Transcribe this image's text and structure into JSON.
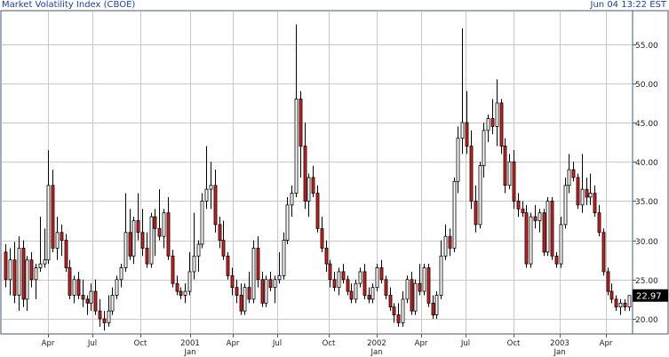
{
  "header": {
    "title": "Market Volatility Index (CBOE)",
    "timestamp": "Jun 04 13:22 EST"
  },
  "colors": {
    "up": "#ffffff",
    "down": "#d81e1e",
    "wick": "#000000",
    "grid": "#c8c8c8",
    "frame": "#4a5670",
    "header_text": "#1a3fae",
    "last_badge_bg": "#000000",
    "last_badge_text": "#ffffff"
  },
  "chart_data": {
    "type": "candlestick",
    "title": "Market Volatility Index (CBOE)",
    "period": "weekly",
    "x": {
      "tick_labels": [
        "Apr",
        "Jul",
        "Oct",
        "2001",
        "Jan",
        "Apr",
        "Jul",
        "Oct",
        "2002",
        "Jan",
        "Apr",
        "Jul",
        "Oct",
        "2003",
        "Jan",
        "Apr"
      ]
    },
    "y": {
      "ticks": [
        20,
        25,
        30,
        35,
        40,
        45,
        50,
        55
      ],
      "tick_labels": [
        "20.00",
        "25.00",
        "30.00",
        "35.00",
        "40.00",
        "45.00",
        "50.00",
        "55.00"
      ],
      "range": [
        16.0,
        58.0
      ],
      "side": "right"
    },
    "grid": true,
    "last_value": "22.97",
    "candles": [
      [
        28.5,
        29.5,
        24.0,
        25.0
      ],
      [
        25.0,
        29.0,
        23.0,
        27.5
      ],
      [
        27.5,
        29.8,
        22.0,
        23.0
      ],
      [
        23.0,
        30.5,
        21.0,
        29.0
      ],
      [
        29.0,
        30.0,
        21.5,
        22.5
      ],
      [
        22.5,
        28.0,
        21.0,
        27.5
      ],
      [
        27.5,
        28.5,
        24.0,
        25.0
      ],
      [
        25.0,
        27.0,
        22.5,
        26.5
      ],
      [
        26.5,
        33.0,
        26.0,
        27.0
      ],
      [
        27.0,
        31.5,
        26.5,
        27.5
      ],
      [
        27.5,
        41.5,
        27.0,
        37.0
      ],
      [
        37.0,
        39.0,
        28.5,
        29.0
      ],
      [
        29.0,
        33.0,
        27.5,
        31.0
      ],
      [
        31.0,
        32.0,
        28.0,
        30.0
      ],
      [
        30.0,
        30.8,
        26.0,
        26.5
      ],
      [
        26.5,
        27.5,
        22.5,
        23.0
      ],
      [
        23.0,
        25.5,
        22.0,
        25.0
      ],
      [
        25.0,
        26.0,
        22.5,
        23.0
      ],
      [
        23.0,
        25.0,
        21.5,
        22.5
      ],
      [
        22.5,
        23.0,
        20.5,
        22.0
      ],
      [
        22.0,
        24.5,
        21.0,
        23.5
      ],
      [
        23.5,
        25.0,
        20.5,
        21.0
      ],
      [
        21.0,
        22.5,
        19.0,
        20.0
      ],
      [
        20.0,
        21.0,
        18.5,
        19.5
      ],
      [
        19.5,
        23.0,
        19.0,
        21.0
      ],
      [
        21.0,
        24.0,
        20.5,
        23.0
      ],
      [
        23.0,
        25.5,
        22.5,
        25.0
      ],
      [
        25.0,
        27.0,
        24.0,
        26.5
      ],
      [
        26.5,
        36.0,
        26.0,
        31.0
      ],
      [
        31.0,
        34.0,
        27.5,
        28.0
      ],
      [
        28.0,
        33.0,
        27.0,
        32.5
      ],
      [
        32.5,
        36.0,
        30.0,
        31.0
      ],
      [
        31.0,
        34.0,
        28.0,
        29.0
      ],
      [
        29.0,
        31.0,
        26.5,
        27.0
      ],
      [
        27.0,
        33.5,
        26.5,
        33.0
      ],
      [
        33.0,
        34.0,
        28.0,
        31.5
      ],
      [
        31.5,
        36.5,
        30.0,
        30.5
      ],
      [
        30.5,
        34.0,
        29.0,
        33.5
      ],
      [
        33.5,
        35.5,
        27.5,
        28.0
      ],
      [
        28.0,
        28.8,
        24.0,
        24.5
      ],
      [
        24.5,
        25.5,
        23.0,
        23.5
      ],
      [
        23.5,
        24.0,
        22.5,
        23.0
      ],
      [
        23.0,
        24.5,
        22.0,
        23.5
      ],
      [
        23.5,
        28.5,
        23.0,
        26.0
      ],
      [
        26.0,
        33.5,
        25.0,
        28.0
      ],
      [
        28.0,
        30.0,
        26.0,
        29.5
      ],
      [
        29.5,
        36.0,
        29.0,
        35.0
      ],
      [
        35.0,
        42.0,
        34.0,
        36.5
      ],
      [
        36.5,
        40.0,
        34.0,
        37.0
      ],
      [
        37.0,
        39.0,
        31.0,
        32.0
      ],
      [
        32.0,
        33.0,
        29.0,
        30.0
      ],
      [
        30.0,
        32.5,
        27.5,
        28.0
      ],
      [
        28.0,
        28.5,
        25.0,
        25.5
      ],
      [
        25.5,
        26.5,
        23.0,
        24.0
      ],
      [
        24.0,
        25.0,
        22.0,
        23.0
      ],
      [
        23.0,
        24.5,
        20.5,
        21.0
      ],
      [
        21.0,
        24.5,
        20.5,
        24.0
      ],
      [
        24.0,
        26.0,
        22.0,
        22.5
      ],
      [
        22.5,
        30.0,
        22.0,
        29.0
      ],
      [
        29.0,
        30.5,
        24.0,
        25.0
      ],
      [
        25.0,
        26.0,
        21.5,
        22.0
      ],
      [
        22.0,
        25.5,
        21.5,
        25.0
      ],
      [
        25.0,
        26.0,
        23.5,
        24.0
      ],
      [
        24.0,
        25.5,
        22.0,
        25.0
      ],
      [
        25.0,
        28.5,
        24.5,
        25.5
      ],
      [
        25.5,
        31.0,
        25.0,
        30.0
      ],
      [
        30.0,
        35.5,
        29.5,
        34.5
      ],
      [
        34.5,
        37.0,
        33.0,
        36.0
      ],
      [
        36.0,
        57.5,
        35.5,
        48.0
      ],
      [
        48.0,
        49.0,
        38.0,
        42.0
      ],
      [
        42.0,
        45.0,
        34.0,
        35.0
      ],
      [
        35.0,
        38.5,
        33.0,
        38.0
      ],
      [
        38.0,
        39.5,
        35.5,
        36.0
      ],
      [
        36.0,
        37.0,
        31.0,
        31.5
      ],
      [
        31.5,
        33.0,
        28.5,
        29.0
      ],
      [
        29.0,
        30.0,
        26.0,
        27.0
      ],
      [
        27.0,
        27.5,
        24.0,
        25.0
      ],
      [
        25.0,
        26.0,
        23.5,
        24.0
      ],
      [
        24.0,
        26.5,
        23.0,
        26.0
      ],
      [
        26.0,
        27.0,
        24.5,
        25.0
      ],
      [
        25.0,
        25.5,
        23.0,
        23.5
      ],
      [
        23.5,
        24.5,
        22.0,
        22.5
      ],
      [
        22.5,
        25.0,
        22.0,
        24.5
      ],
      [
        24.5,
        26.5,
        24.0,
        26.0
      ],
      [
        26.0,
        27.0,
        22.5,
        23.0
      ],
      [
        23.0,
        24.0,
        22.0,
        22.5
      ],
      [
        22.5,
        24.5,
        22.0,
        24.0
      ],
      [
        24.0,
        27.0,
        23.5,
        26.5
      ],
      [
        26.5,
        27.5,
        24.5,
        25.0
      ],
      [
        25.0,
        25.5,
        22.5,
        23.0
      ],
      [
        23.0,
        24.0,
        21.0,
        21.5
      ],
      [
        21.5,
        22.0,
        19.5,
        20.5
      ],
      [
        20.5,
        22.0,
        19.0,
        19.5
      ],
      [
        19.5,
        23.5,
        19.0,
        22.5
      ],
      [
        22.5,
        25.5,
        22.0,
        25.0
      ],
      [
        25.0,
        26.0,
        20.5,
        21.0
      ],
      [
        21.0,
        25.0,
        20.5,
        24.5
      ],
      [
        24.5,
        27.0,
        23.0,
        23.5
      ],
      [
        23.5,
        27.0,
        23.0,
        26.5
      ],
      [
        26.5,
        27.0,
        21.5,
        22.0
      ],
      [
        22.0,
        23.0,
        20.0,
        20.5
      ],
      [
        20.5,
        23.5,
        20.0,
        23.0
      ],
      [
        23.0,
        30.0,
        22.5,
        28.0
      ],
      [
        28.0,
        32.0,
        27.5,
        30.5
      ],
      [
        30.5,
        31.5,
        28.0,
        29.0
      ],
      [
        29.0,
        38.0,
        28.5,
        37.5
      ],
      [
        37.5,
        44.5,
        36.0,
        43.0
      ],
      [
        43.0,
        57.0,
        41.0,
        45.0
      ],
      [
        45.0,
        49.0,
        41.0,
        42.0
      ],
      [
        42.0,
        44.0,
        34.0,
        35.0
      ],
      [
        35.0,
        37.0,
        31.0,
        32.0
      ],
      [
        32.0,
        40.0,
        31.5,
        39.5
      ],
      [
        39.5,
        45.0,
        38.0,
        44.0
      ],
      [
        44.0,
        46.0,
        42.5,
        45.5
      ],
      [
        45.5,
        48.0,
        43.5,
        44.5
      ],
      [
        44.5,
        50.5,
        42.0,
        47.5
      ],
      [
        47.5,
        48.0,
        41.0,
        42.0
      ],
      [
        42.0,
        43.0,
        36.0,
        37.0
      ],
      [
        37.0,
        41.0,
        36.5,
        40.0
      ],
      [
        40.0,
        41.5,
        34.0,
        35.0
      ],
      [
        35.0,
        36.0,
        33.0,
        34.0
      ],
      [
        34.0,
        35.0,
        33.0,
        33.5
      ],
      [
        33.5,
        34.5,
        26.5,
        27.0
      ],
      [
        27.0,
        33.5,
        26.5,
        33.0
      ],
      [
        33.0,
        34.5,
        31.5,
        32.5
      ],
      [
        32.5,
        34.0,
        31.0,
        33.5
      ],
      [
        33.5,
        34.0,
        28.0,
        28.5
      ],
      [
        28.5,
        35.5,
        28.0,
        35.0
      ],
      [
        35.0,
        35.5,
        27.5,
        28.0
      ],
      [
        28.0,
        28.5,
        26.5,
        27.0
      ],
      [
        27.0,
        33.0,
        26.5,
        32.0
      ],
      [
        32.0,
        38.0,
        31.5,
        37.0
      ],
      [
        37.0,
        41.0,
        36.0,
        39.0
      ],
      [
        39.0,
        40.0,
        37.5,
        38.0
      ],
      [
        38.0,
        38.5,
        34.0,
        34.5
      ],
      [
        34.5,
        41.0,
        33.5,
        36.5
      ],
      [
        36.5,
        38.0,
        34.5,
        35.5
      ],
      [
        35.5,
        38.5,
        34.5,
        36.0
      ],
      [
        36.0,
        37.0,
        33.0,
        33.5
      ],
      [
        33.5,
        34.5,
        30.5,
        31.0
      ],
      [
        31.0,
        31.5,
        25.5,
        26.0
      ],
      [
        26.0,
        26.5,
        23.0,
        23.5
      ],
      [
        23.5,
        24.5,
        22.0,
        22.5
      ],
      [
        22.5,
        23.0,
        21.0,
        21.5
      ],
      [
        21.5,
        22.5,
        20.5,
        22.0
      ],
      [
        22.0,
        22.5,
        21.0,
        21.5
      ],
      [
        21.5,
        23.0,
        21.0,
        22.97
      ]
    ]
  }
}
